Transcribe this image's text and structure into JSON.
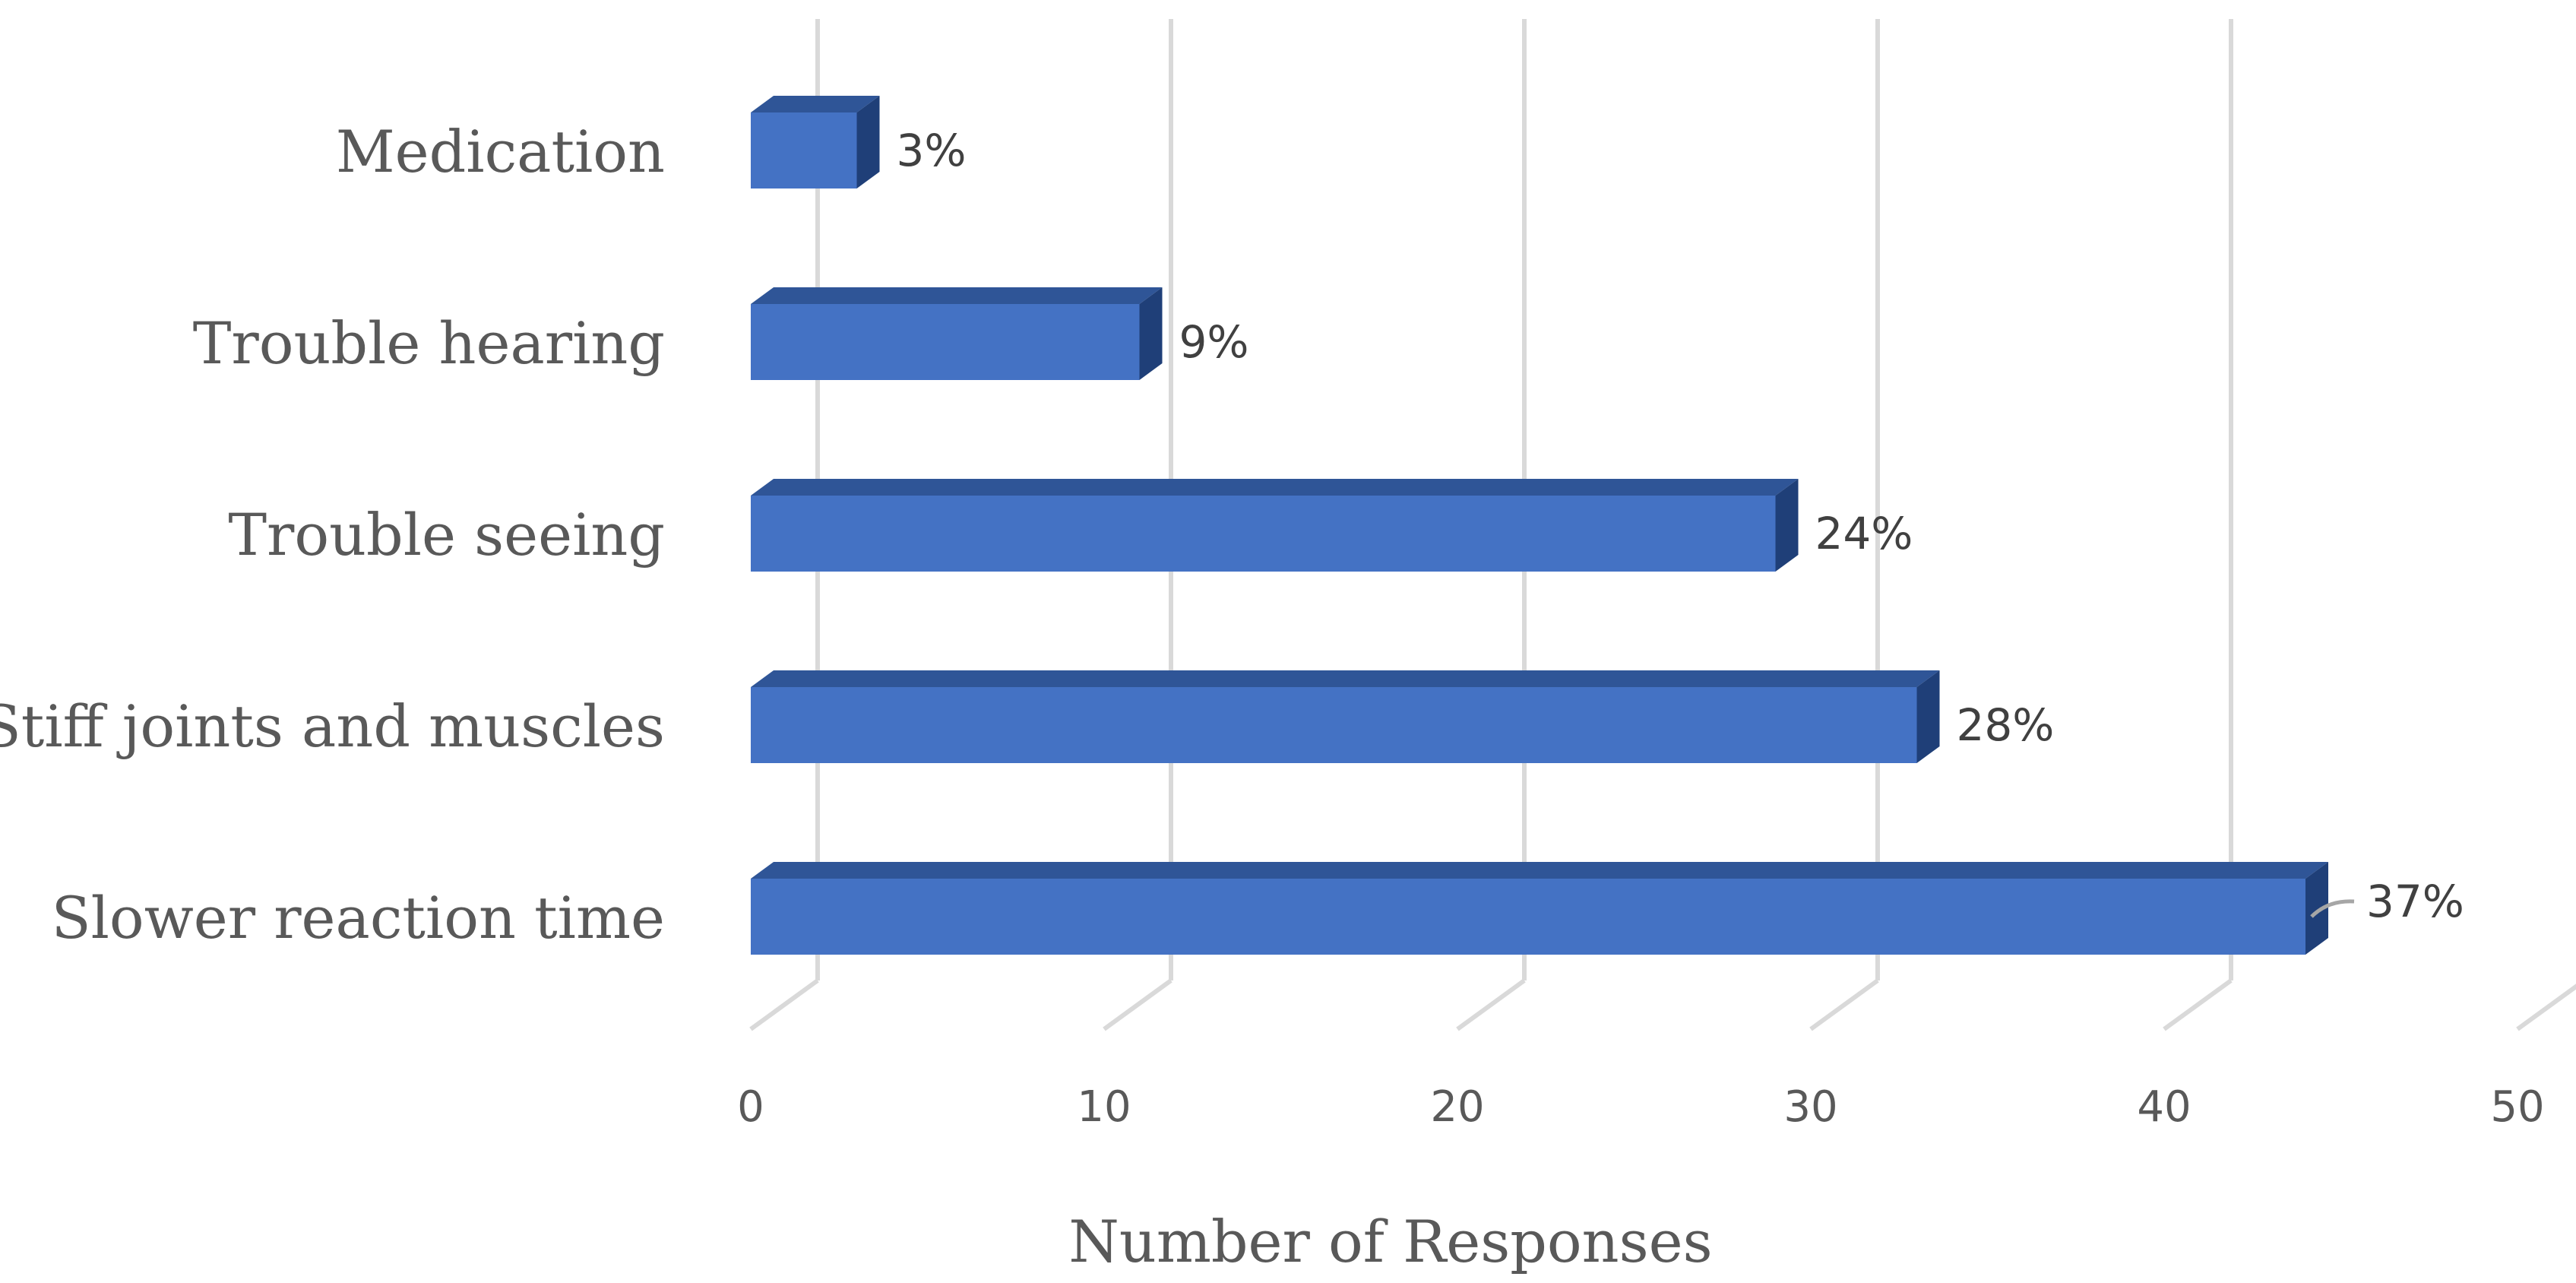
{
  "chart_data": {
    "type": "bar",
    "orientation": "horizontal",
    "style": "3d",
    "categories": [
      "Medication",
      "Trouble hearing",
      "Trouble seeing",
      "Stiff joints and muscles",
      "Slower reaction time"
    ],
    "values": [
      3,
      11,
      29,
      33,
      44
    ],
    "data_labels": [
      "3%",
      "9%",
      "24%",
      "28%",
      "37%"
    ],
    "xlabel": "Number of Responses",
    "xlim": [
      0,
      50
    ],
    "xticks": [
      "0",
      "10",
      "20",
      "30",
      "40",
      "50"
    ],
    "grid": true,
    "legend": "none",
    "colors": {
      "bar_front": "#4472c4",
      "bar_top": "#2f5597",
      "bar_side": "#1f3f78",
      "grid": "#d9d9d9"
    }
  }
}
